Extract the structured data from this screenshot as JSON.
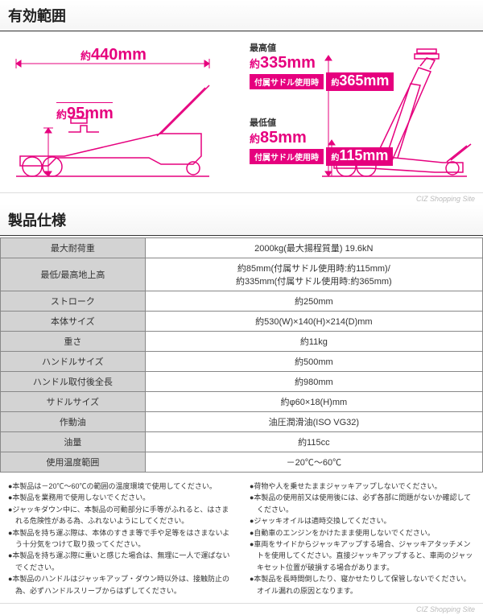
{
  "titles": {
    "range": "有効範囲",
    "spec": "製品仕様"
  },
  "brand": "CIZ Shopping Site",
  "diagram": {
    "left": {
      "width_label": "約",
      "width_val": "440mm",
      "height_label": "約",
      "height_val": "95mm"
    },
    "right": {
      "max_t": "最高値",
      "max_l": "約",
      "max_v": "335mm",
      "max_badge": "付属サドル使用時",
      "max_bl": "約",
      "max_bv": "365mm",
      "min_t": "最低値",
      "min_l": "約",
      "min_v": "85mm",
      "min_badge": "付属サドル使用時",
      "min_bl": "約",
      "min_bv": "115mm"
    }
  },
  "specs": [
    {
      "k": "最大耐荷重",
      "v": "2000kg(最大揚程質量) 19.6kN"
    },
    {
      "k": "最低/最高地上高",
      "v": "約85mm(付属サドル使用時:約115mm)/\n約335mm(付属サドル使用時:約365mm)"
    },
    {
      "k": "ストローク",
      "v": "約250mm"
    },
    {
      "k": "本体サイズ",
      "v": "約530(W)×140(H)×214(D)mm"
    },
    {
      "k": "重さ",
      "v": "約11kg"
    },
    {
      "k": "ハンドルサイズ",
      "v": "約500mm"
    },
    {
      "k": "ハンドル取付後全長",
      "v": "約980mm"
    },
    {
      "k": "サドルサイズ",
      "v": "約φ60×18(H)mm"
    },
    {
      "k": "作動油",
      "v": "油圧潤滑油(ISO VG32)"
    },
    {
      "k": "油量",
      "v": "約115cc"
    },
    {
      "k": "使用温度範囲",
      "v": "－20℃～60℃"
    }
  ],
  "notes_left": [
    "●本製品は－20℃～60℃の範囲の温度環境で使用してください。",
    "●本製品を業務用で使用しないでください。",
    "●ジャッキダウン中に、本製品の可動部分に手等がふれると、はさまれる危険性がある為、ふれないようにしてください。",
    "●本製品を持ち運ぶ際は、本体のすきま等で手や足等をはさまないよう十分気をつけて取り扱ってください。",
    "●本製品を持ち運ぶ際に重いと感じた場合は、無理に一人で運ばないでください。",
    "●本製品のハンドルはジャッキアップ・ダウン時以外は、接触防止の為、必ずハンドルスリーブからはずしてください。"
  ],
  "notes_right": [
    "●荷物や人を乗せたままジャッキアップしないでください。",
    "●本製品の使用前又は使用後には、必ず各部に問題がないか確認してください。",
    "●ジャッキオイルは適時交換してください。",
    "●自動車のエンジンをかけたまま使用しないでください。",
    "●車両をサイドからジャッキアップする場合、ジャッキアタッチメントを使用してください。直接ジャッキアップすると、車両のジャッキセット位置が破損する場合があります。",
    "●本製品を長時間倒したり、寝かせたりして保管しないでください。オイル漏れの原因となります。"
  ]
}
